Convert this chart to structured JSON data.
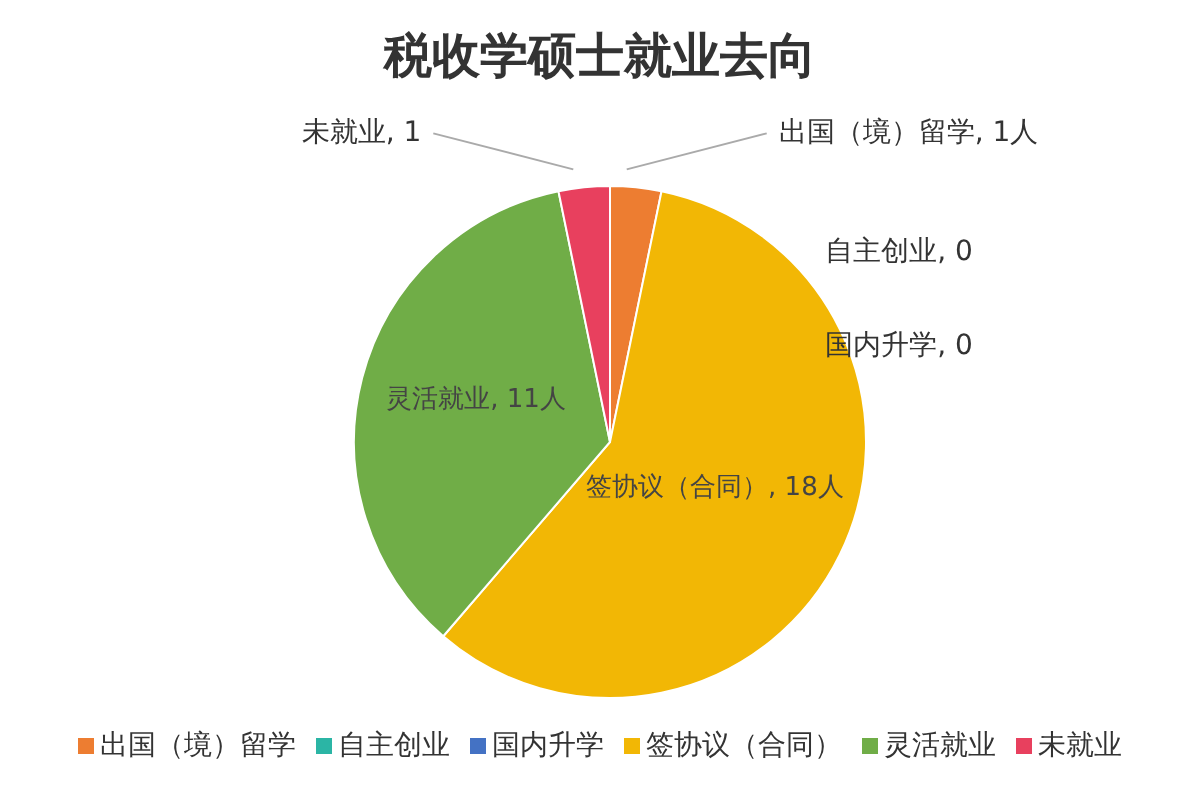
{
  "chart_data": {
    "type": "pie",
    "title": "税收学硕士就业去向",
    "categories": [
      "出国（境）留学",
      "自主创业",
      "国内升学",
      "签协议（合同）",
      "灵活就业",
      "未就业"
    ],
    "values": [
      1,
      0,
      0,
      18,
      11,
      1
    ],
    "colors": [
      "#ed7d31",
      "#2bb5a5",
      "#4472c4",
      "#f2b705",
      "#70ad47",
      "#e8405e"
    ],
    "value_labels": [
      "出国（境）留学, 1人",
      "自主创业, 0",
      "国内升学, 0",
      "签协议（合同）, 18人",
      "灵活就业, 11人",
      "未就业, 1"
    ],
    "legend": "bottom"
  }
}
